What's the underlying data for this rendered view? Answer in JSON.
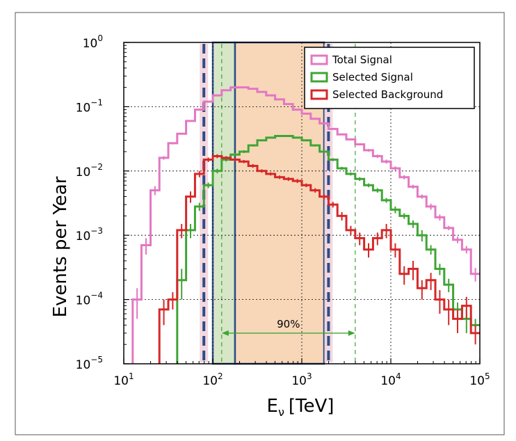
{
  "chart_data": {
    "type": "line",
    "xlabel": "E",
    "xlabel_sub": "ν",
    "xlabel_unit": "[TeV]",
    "ylabel": "Events per Year",
    "xscale": "log",
    "yscale": "log",
    "xlim": [
      10,
      100000
    ],
    "ylim": [
      1e-05,
      1
    ],
    "grid": true,
    "legend_position": "top-right",
    "x_ticks": [
      {
        "base": "10",
        "exp": "1",
        "value": 10
      },
      {
        "base": "10",
        "exp": "2",
        "value": 100
      },
      {
        "base": "10",
        "exp": "3",
        "value": 1000
      },
      {
        "base": "10",
        "exp": "4",
        "value": 10000
      },
      {
        "base": "10",
        "exp": "5",
        "value": 100000
      }
    ],
    "y_ticks": [
      {
        "base": "10",
        "exp": "0",
        "value": 1
      },
      {
        "base": "10",
        "exp": "−1",
        "value": 0.1
      },
      {
        "base": "10",
        "exp": "−2",
        "value": 0.01
      },
      {
        "base": "10",
        "exp": "−3",
        "value": 0.001
      },
      {
        "base": "10",
        "exp": "−4",
        "value": 0.0001
      },
      {
        "base": "10",
        "exp": "−5",
        "value": 1e-05
      }
    ],
    "bin_edges": [
      12.6,
      15.8,
      20,
      25.1,
      31.6,
      39.8,
      50.1,
      63.1,
      79.4,
      100,
      125.9,
      158.5,
      199.5,
      251.2,
      316.2,
      398.1,
      501.2,
      631,
      794.3,
      1000,
      1258.9,
      1584.9,
      1995.3,
      2511.9,
      3162.3,
      3981.1,
      5011.9,
      6309.6,
      7943.3,
      10000,
      12589,
      15849,
      19953,
      25119,
      31623,
      39811,
      50119,
      63096,
      79433,
      100000
    ],
    "series": [
      {
        "name": "Total Signal",
        "color": "#e377c2",
        "values": [
          0.0001,
          0.0007,
          0.005,
          0.016,
          0.027,
          0.038,
          0.06,
          0.09,
          0.12,
          0.15,
          0.18,
          0.2,
          0.2,
          0.19,
          0.17,
          0.15,
          0.13,
          0.11,
          0.09,
          0.078,
          0.065,
          0.055,
          0.045,
          0.037,
          0.031,
          0.026,
          0.021,
          0.017,
          0.014,
          0.011,
          0.008,
          0.0057,
          0.004,
          0.0028,
          0.0019,
          0.0013,
          0.00085,
          0.0006,
          0.00025
        ],
        "errors": [
          5e-05,
          0.0002,
          0.0008,
          0.001,
          0.001,
          0.001,
          0.002,
          0.002,
          0.002,
          0.002,
          0.002,
          0.002,
          0.002,
          0.002,
          0.002,
          0.002,
          0.002,
          0.002,
          0.002,
          0.002,
          0.002,
          0.001,
          0.001,
          0.001,
          0.001,
          0.001,
          0.001,
          0.001,
          0.001,
          0.0008,
          0.0006,
          0.0004,
          0.0003,
          0.0003,
          0.0002,
          0.0001,
          0.0001,
          8e-05,
          6e-05
        ]
      },
      {
        "name": "Selected Signal",
        "color": "#3fa535",
        "values": [
          null,
          null,
          null,
          null,
          null,
          0.0002,
          0.0012,
          0.0028,
          0.006,
          0.01,
          0.015,
          0.018,
          0.02,
          0.025,
          0.03,
          0.033,
          0.035,
          0.035,
          0.033,
          0.03,
          0.025,
          0.02,
          0.015,
          0.011,
          0.009,
          0.0075,
          0.006,
          0.005,
          0.0035,
          0.0025,
          0.002,
          0.0015,
          0.001,
          0.0006,
          0.0003,
          0.00017,
          7e-05,
          5e-05,
          4e-05
        ],
        "errors": [
          null,
          null,
          null,
          null,
          null,
          0.0001,
          0.0003,
          0.0004,
          0.0006,
          0.0008,
          0.001,
          0.001,
          0.001,
          0.001,
          0.001,
          0.001,
          0.001,
          0.001,
          0.001,
          0.001,
          0.001,
          0.001,
          0.0008,
          0.0006,
          0.0005,
          0.0005,
          0.0004,
          0.0004,
          0.0003,
          0.0003,
          0.0002,
          0.0002,
          0.0002,
          0.0001,
          6e-05,
          4e-05,
          2e-05,
          2e-05,
          1e-05
        ]
      },
      {
        "name": "Selected Background",
        "color": "#d62728",
        "values": [
          null,
          null,
          null,
          7e-05,
          0.0001,
          0.0012,
          0.004,
          0.009,
          0.015,
          0.017,
          0.016,
          0.015,
          0.014,
          0.012,
          0.01,
          0.009,
          0.008,
          0.0075,
          0.007,
          0.006,
          0.005,
          0.004,
          0.003,
          0.002,
          0.0012,
          0.0009,
          0.0006,
          0.0009,
          0.0012,
          0.0006,
          0.00025,
          0.0003,
          0.00015,
          0.0002,
          0.0001,
          7e-05,
          5e-05,
          8e-05,
          3e-05
        ],
        "errors": [
          null,
          null,
          null,
          3e-05,
          3e-05,
          0.0003,
          0.0008,
          0.001,
          0.0012,
          0.0012,
          0.001,
          0.001,
          0.0008,
          0.0008,
          0.0006,
          0.0005,
          0.0005,
          0.0005,
          0.0005,
          0.0004,
          0.0004,
          0.0004,
          0.0003,
          0.0003,
          0.0002,
          0.0002,
          0.00015,
          0.0002,
          0.0003,
          0.00015,
          8e-05,
          0.0001,
          5e-05,
          6e-05,
          4e-05,
          3e-05,
          2e-05,
          3e-05,
          1e-05
        ]
      }
    ],
    "highlights": [
      {
        "kind": "band",
        "x": [
          100,
          177.8
        ],
        "fill": "#d7e6c6",
        "outline": "#2e4d87"
      },
      {
        "kind": "band",
        "x": [
          177.8,
          1778.3
        ],
        "fill": "#f8d7b9",
        "outline": "#2e4d87"
      },
      {
        "kind": "dashed-lines",
        "x": [
          79.4,
          1995.3
        ],
        "color": "#2e4d87"
      },
      {
        "kind": "dashed-lines",
        "x": [
          125.9,
          3981.1
        ],
        "color": "#3fa535"
      }
    ],
    "annotation": {
      "text": "90%",
      "x_from": 125.9,
      "x_to": 3981.1,
      "y": 3e-05,
      "color": "#3fa535"
    }
  }
}
